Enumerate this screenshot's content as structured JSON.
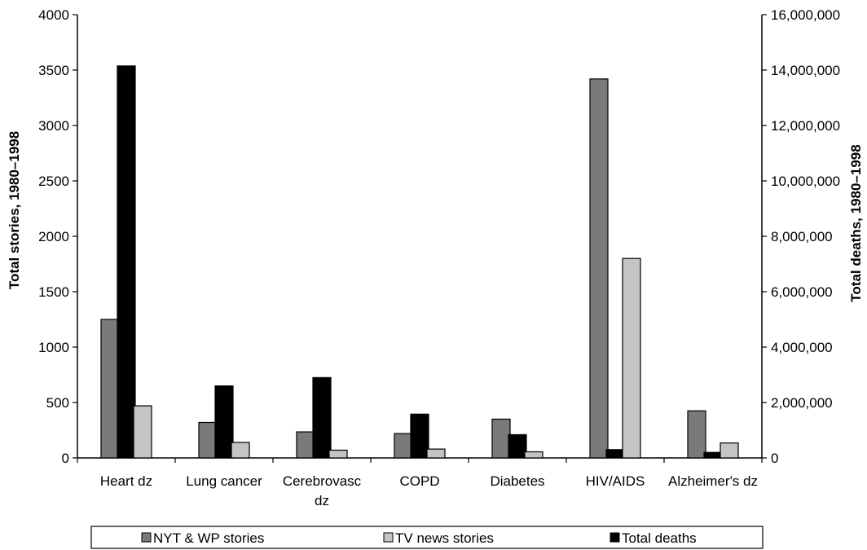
{
  "chart_data": {
    "type": "bar",
    "categories": [
      "Heart dz",
      "Lung cancer",
      "Cerebrovasc dz",
      "COPD",
      "Diabetes",
      "HIV/AIDS",
      "Alzheimer's dz"
    ],
    "category_lines": [
      [
        "Heart dz"
      ],
      [
        "Lung cancer"
      ],
      [
        "Cerebrovasc",
        "dz"
      ],
      [
        "COPD"
      ],
      [
        "Diabetes"
      ],
      [
        "HIV/AIDS"
      ],
      [
        "Alzheimer's dz"
      ]
    ],
    "series": [
      {
        "name": "NYT & WP stories",
        "axis": "left",
        "color": "#7a7a7a",
        "values": [
          1250,
          320,
          235,
          220,
          350,
          3420,
          425
        ]
      },
      {
        "name": "Total deaths",
        "axis": "right",
        "color": "#000000",
        "values": [
          14150000,
          2600000,
          2900000,
          1580000,
          840000,
          300000,
          200000
        ]
      },
      {
        "name": "TV news stories",
        "axis": "left",
        "color": "#c4c4c4",
        "values": [
          470,
          140,
          70,
          80,
          55,
          1800,
          135
        ]
      }
    ],
    "legend_order": [
      "NYT & WP stories",
      "TV news stories",
      "Total deaths"
    ],
    "ylabel": "Total stories, 1980–1998",
    "y2label": "Total deaths, 1980–1998",
    "ylim": [
      0,
      4000
    ],
    "y2lim": [
      0,
      16000000
    ],
    "yticks": [
      "0",
      "500",
      "1000",
      "1500",
      "2000",
      "2500",
      "3000",
      "3500",
      "4000"
    ],
    "y2ticks": [
      "0",
      "2,000,000",
      "4,000,000",
      "6,000,000",
      "8,000,000",
      "10,000,000",
      "12,000,000",
      "14,000,000",
      "16,000,000"
    ],
    "legend_position": "bottom",
    "grid": false
  }
}
